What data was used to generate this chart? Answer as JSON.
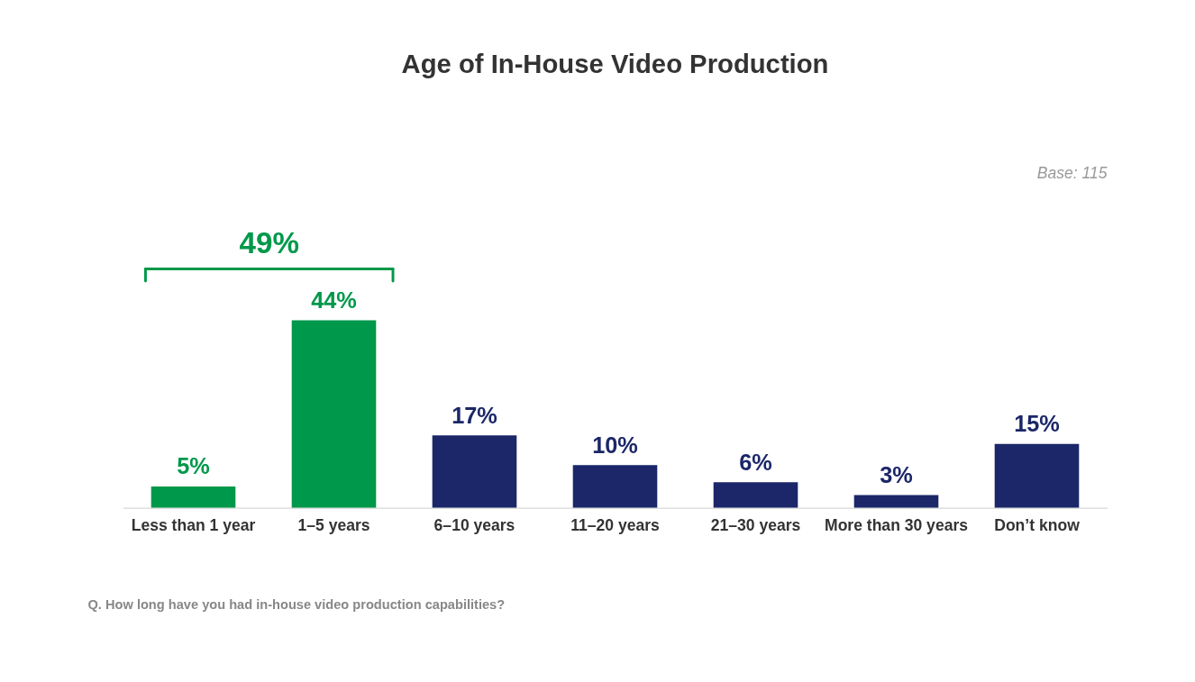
{
  "chart_data": {
    "type": "bar",
    "title": "Age of In-House Video Production",
    "categories": [
      "Less than 1 year",
      "1–5 years",
      "6–10 years",
      "11–20 years",
      "21–30 years",
      "More than 30 years",
      "Don’t know"
    ],
    "values": [
      5,
      44,
      17,
      10,
      6,
      3,
      15
    ],
    "colors": [
      "#00984a",
      "#00984a",
      "#1b2768",
      "#1b2768",
      "#1b2768",
      "#1b2768",
      "#1b2768"
    ],
    "value_labels": [
      "5%",
      "44%",
      "17%",
      "10%",
      "6%",
      "3%",
      "15%"
    ],
    "annotations": [
      "49%",
      "Base: 115",
      "Q. How long have you had in-house video production capabilities?"
    ],
    "grid": false
  }
}
